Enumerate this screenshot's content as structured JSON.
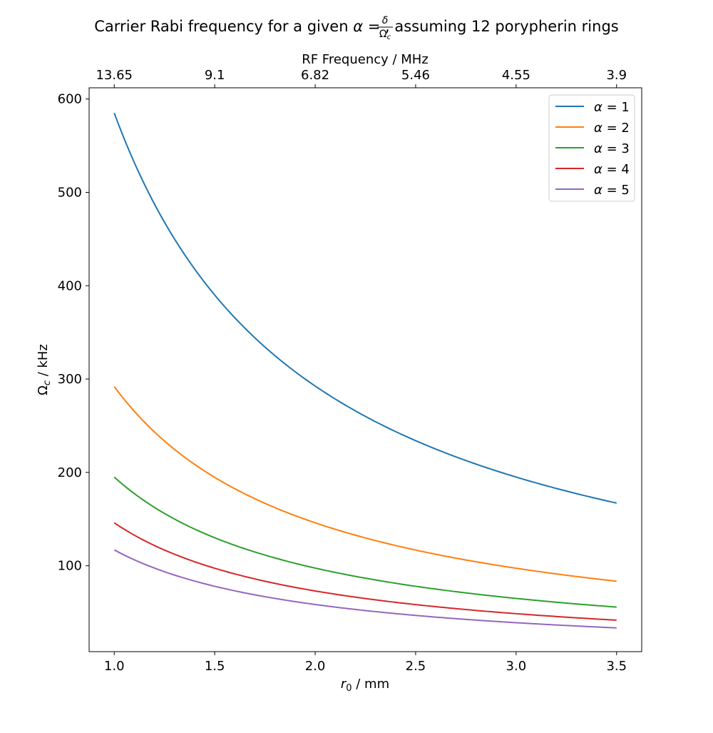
{
  "chart_data": {
    "type": "line",
    "title": {
      "prefix": "Carrier Rabi frequency for a given ",
      "alpha": "α",
      "eq": " = ",
      "frac_num": "δ",
      "frac_den_base": "Ω",
      "frac_den_sub": "c",
      "suffix": ", assuming 12 porypherin rings"
    },
    "xlabel": {
      "var": "r",
      "sub": "0",
      "unit": " / mm"
    },
    "ylabel": {
      "var": "Ω",
      "sub": "c",
      "unit": " / kHz"
    },
    "top_xlabel": "RF Frequency / MHz",
    "xlim": [
      0.875,
      3.625
    ],
    "ylim": [
      8,
      612
    ],
    "xticks": [
      1.0,
      1.5,
      2.0,
      2.5,
      3.0,
      3.5
    ],
    "xtick_labels": [
      "1.0",
      "1.5",
      "2.0",
      "2.5",
      "3.0",
      "3.5"
    ],
    "yticks": [
      100,
      200,
      300,
      400,
      500,
      600
    ],
    "ytick_labels": [
      "100",
      "200",
      "300",
      "400",
      "500",
      "600"
    ],
    "top_xticks": [
      1.0,
      1.5,
      2.0,
      2.5,
      3.0,
      3.5
    ],
    "top_xtick_labels": [
      "13.65",
      "9.1",
      "6.82",
      "5.46",
      "4.55",
      "3.9"
    ],
    "x": [
      1.0,
      1.25,
      1.5,
      1.75,
      2.0,
      2.25,
      2.5,
      2.75,
      3.0,
      3.25,
      3.5
    ],
    "series": [
      {
        "name": "α = 1",
        "legend_alpha": "α",
        "legend_eq": " = 1",
        "color": "#1f77b4",
        "values": [
          585,
          468,
          390,
          334,
          292,
          260,
          234,
          213,
          195,
          180,
          167
        ]
      },
      {
        "name": "α = 2",
        "legend_alpha": "α",
        "legend_eq": " = 2",
        "color": "#ff7f0e",
        "values": [
          292,
          234,
          195,
          167,
          146,
          130,
          117,
          106,
          97,
          90,
          84
        ]
      },
      {
        "name": "α = 3",
        "legend_alpha": "α",
        "legend_eq": " = 3",
        "color": "#2ca02c",
        "values": [
          195,
          156,
          130,
          111,
          97,
          87,
          78,
          71,
          65,
          60,
          56
        ]
      },
      {
        "name": "α = 4",
        "legend_alpha": "α",
        "legend_eq": " = 4",
        "color": "#d62728",
        "values": [
          146,
          117,
          97,
          84,
          73,
          65,
          58,
          53,
          49,
          45,
          42
        ]
      },
      {
        "name": "α = 5",
        "legend_alpha": "α",
        "legend_eq": " = 5",
        "color": "#9467bd",
        "values": [
          117,
          94,
          78,
          67,
          58,
          52,
          47,
          43,
          39,
          36,
          33
        ]
      }
    ],
    "legend_position": "top-right",
    "grid": false
  }
}
